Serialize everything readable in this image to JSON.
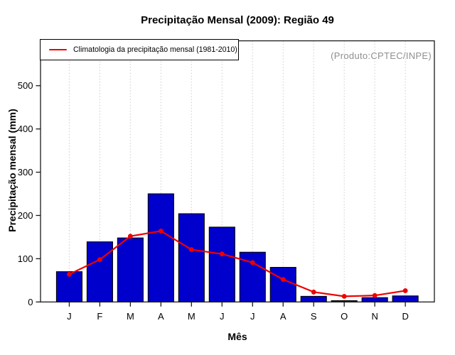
{
  "header": {
    "title": "Precipitação Mensal (2009): Região 49"
  },
  "annotations": {
    "source_note": "(Produto:CPTEC/INPE)"
  },
  "legend": {
    "position": "top-left",
    "items": [
      {
        "label": "Climatologia da precipitação mensal (1981-2010)",
        "color": "#ee0000",
        "marker": "line"
      }
    ]
  },
  "axes": {
    "xlabel": "Mês",
    "ylabel": "Precipitação mensal (mm)",
    "yticks": [
      0,
      100,
      200,
      300,
      400,
      500
    ],
    "months": [
      "J",
      "F",
      "M",
      "A",
      "M",
      "J",
      "J",
      "A",
      "S",
      "O",
      "N",
      "D"
    ]
  },
  "colors": {
    "bar_fill": "#0000cd",
    "bar_stroke": "#000000",
    "line": "#ee0000",
    "grid": "#cccccc",
    "frame": "#1a1a1a",
    "source_text": "#8f8f8f"
  },
  "chart_data": {
    "type": "bar",
    "title": "Precipitação Mensal (2009): Região 49",
    "xlabel": "Mês",
    "ylabel": "Precipitação mensal (mm)",
    "categories": [
      "J",
      "F",
      "M",
      "A",
      "M",
      "J",
      "J",
      "A",
      "S",
      "O",
      "N",
      "D"
    ],
    "series": [
      {
        "name": "Precipitação mensal 2009",
        "type": "bar",
        "color": "#0000cd",
        "values": [
          70,
          139,
          148,
          250,
          204,
          173,
          115,
          80,
          13,
          3,
          10,
          14
        ]
      },
      {
        "name": "Climatologia da precipitação mensal (1981-2010)",
        "type": "line",
        "color": "#ee0000",
        "values": [
          64,
          98,
          152,
          164,
          121,
          111,
          91,
          52,
          23,
          13,
          15,
          26
        ]
      }
    ],
    "ylim": [
      0,
      600
    ],
    "yticks": [
      0,
      100,
      200,
      300,
      400,
      500
    ],
    "grid": "vertical-dotted",
    "legend_position": "top-left",
    "annotation": "(Produto:CPTEC/INPE)"
  }
}
